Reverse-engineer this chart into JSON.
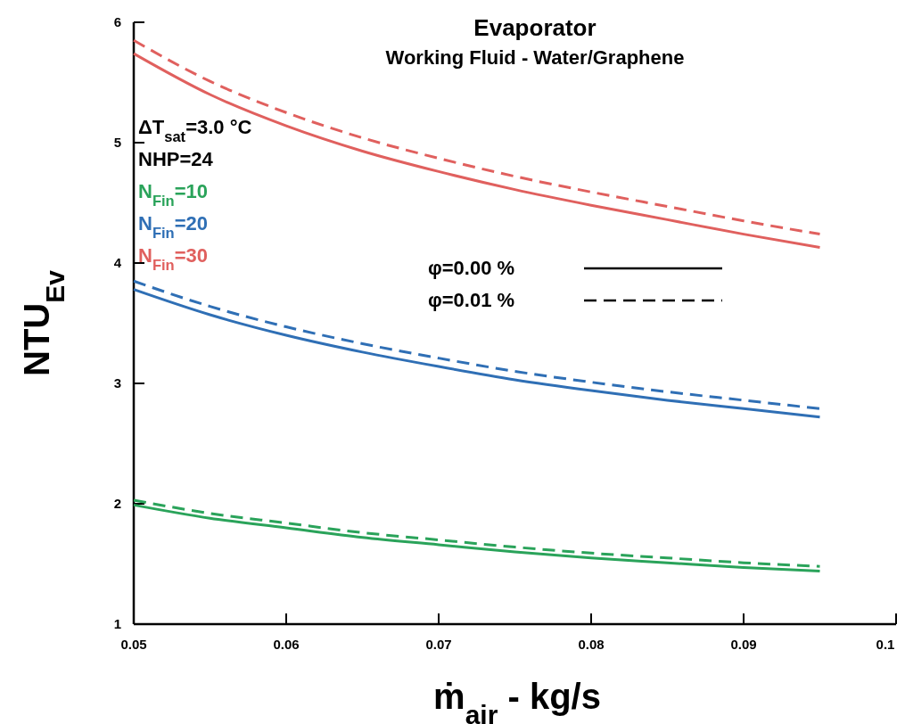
{
  "chart_data": {
    "type": "line",
    "title": "Evaporator",
    "subtitle": "Working Fluid - Water/Graphene",
    "xlabel": "ṁ$_{air}$ - kg/s",
    "ylabel": "NTU$_{Ev}$",
    "x": [
      0.05,
      0.055,
      0.06,
      0.065,
      0.07,
      0.075,
      0.08,
      0.085,
      0.09,
      0.095
    ],
    "xlim": [
      0.05,
      0.1
    ],
    "xticks": [
      0.05,
      0.06,
      0.07,
      0.08,
      0.09,
      0.1
    ],
    "ylim": [
      1,
      6
    ],
    "yticks": [
      1,
      2,
      3,
      4,
      5,
      6
    ],
    "grid": false,
    "legend": "top left",
    "marker": "none",
    "annotations": [
      "ΔT$_{sat}$=3.0 °C",
      "NHP=24",
      "φ=0.00 %",
      "φ=0.01 %"
    ],
    "series": [
      {
        "name": "N$_{Fin}$=10",
        "color": "#2aa35a",
        "line_style": "solid",
        "values": [
          1.99,
          1.88,
          1.8,
          1.72,
          1.66,
          1.6,
          1.55,
          1.51,
          1.47,
          1.44
        ]
      },
      {
        "color": "#2aa35a",
        "line_style": "dashed",
        "values": [
          2.03,
          1.92,
          1.84,
          1.76,
          1.7,
          1.64,
          1.59,
          1.55,
          1.51,
          1.48
        ]
      },
      {
        "name": "N$_{Fin}$=20",
        "color": "#2f6fb5",
        "line_style": "solid",
        "values": [
          3.78,
          3.57,
          3.4,
          3.26,
          3.14,
          3.03,
          2.94,
          2.86,
          2.79,
          2.72
        ]
      },
      {
        "color": "#2f6fb5",
        "line_style": "dashed",
        "values": [
          3.85,
          3.64,
          3.47,
          3.33,
          3.21,
          3.1,
          3.01,
          2.93,
          2.86,
          2.79
        ]
      },
      {
        "name": "N$_{Fin}$=30",
        "color": "#e0605e",
        "line_style": "solid",
        "values": [
          5.74,
          5.4,
          5.14,
          4.93,
          4.76,
          4.61,
          4.48,
          4.36,
          4.24,
          4.13
        ]
      },
      {
        "color": "#e0605e",
        "line_style": "dashed",
        "values": [
          5.85,
          5.51,
          5.25,
          5.04,
          4.87,
          4.72,
          4.59,
          4.47,
          4.35,
          4.24
        ]
      }
    ]
  }
}
